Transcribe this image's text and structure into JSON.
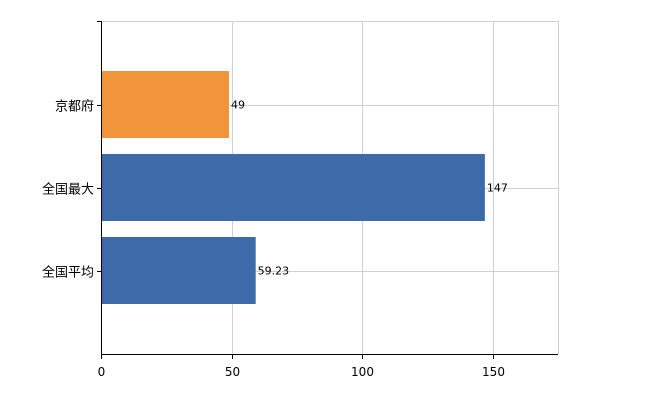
{
  "chart_data": {
    "type": "bar",
    "orientation": "horizontal",
    "categories": [
      "京都府",
      "全国最大",
      "全国平均"
    ],
    "values": [
      49,
      147,
      59.23
    ],
    "value_labels": [
      "49",
      "147",
      "59.23"
    ],
    "bar_colors": [
      "#f0953a",
      "#3d6aa8",
      "#3d6aa8"
    ],
    "xlim": [
      0,
      175
    ],
    "x_ticks": [
      0,
      50,
      100,
      150
    ],
    "x_tick_labels": [
      "0",
      "50",
      "100",
      "150"
    ],
    "grid": true,
    "legend": "none"
  }
}
